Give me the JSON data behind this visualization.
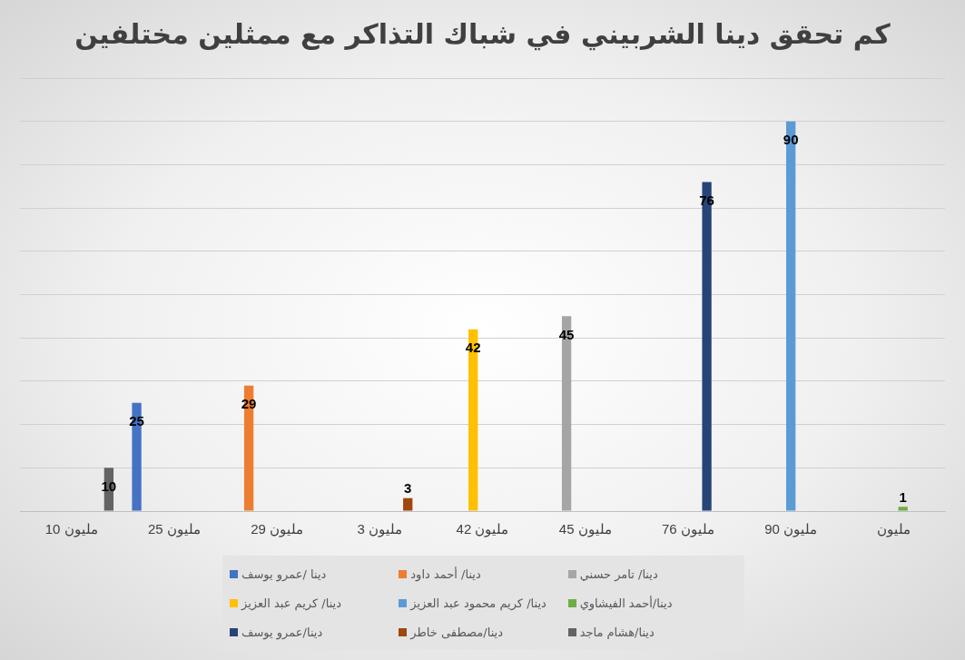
{
  "chart_data": {
    "type": "bar",
    "title": "كم تحقق دينا الشربيني في شباك التذاكر مع ممثلين مختلفين",
    "categories": [
      "10 مليون",
      "25 مليون",
      "29 مليون",
      "3 مليون",
      "42 مليون",
      "45 مليون",
      "76 مليون",
      "90 مليون",
      "مليون"
    ],
    "series": [
      {
        "name": "دينا /عمرو يوسف",
        "color": "#4472c4",
        "values": [
          null,
          25,
          null,
          null,
          null,
          null,
          null,
          null,
          null
        ]
      },
      {
        "name": "دينا/ أحمد داود",
        "color": "#ed7d31",
        "values": [
          null,
          null,
          29,
          null,
          null,
          null,
          null,
          null,
          null
        ]
      },
      {
        "name": "دينا/ تامر حسني",
        "color": "#a5a5a5",
        "values": [
          null,
          null,
          null,
          null,
          null,
          45,
          null,
          null,
          null
        ]
      },
      {
        "name": "دينا/ كريم عبد العزيز",
        "color": "#ffc000",
        "values": [
          null,
          null,
          null,
          null,
          42,
          null,
          null,
          null,
          null
        ]
      },
      {
        "name": "دينا/ كريم محمود عبد العزيز",
        "color": "#5b9bd5",
        "values": [
          null,
          null,
          null,
          null,
          null,
          null,
          null,
          90,
          null
        ]
      },
      {
        "name": "دينا/أحمد الفيشاوي",
        "color": "#70ad47",
        "values": [
          null,
          null,
          null,
          null,
          null,
          null,
          null,
          null,
          1
        ]
      },
      {
        "name": "دينا/عمرو يوسف",
        "color": "#264478",
        "values": [
          null,
          null,
          null,
          null,
          null,
          null,
          76,
          null,
          null
        ]
      },
      {
        "name": "دينا/مصطفى خاطر",
        "color": "#9e480e",
        "values": [
          null,
          null,
          null,
          3,
          null,
          null,
          null,
          null,
          null
        ]
      },
      {
        "name": "دينا/هشام ماجد",
        "color": "#636363",
        "values": [
          10,
          null,
          null,
          null,
          null,
          null,
          null,
          null,
          null
        ]
      }
    ],
    "ylim": [
      0,
      100
    ],
    "yticks": [
      {
        "value": 0,
        "label": null
      },
      {
        "value": 10,
        "label": null
      },
      {
        "value": 20,
        "label": null
      },
      {
        "value": 30,
        "label": null
      },
      {
        "value": 40,
        "label": null
      },
      {
        "value": 50,
        "label": null
      },
      {
        "value": 60,
        "label": null
      },
      {
        "value": 70,
        "label": null
      },
      {
        "value": 80,
        "label": null
      },
      {
        "value": 90,
        "label": null
      },
      {
        "value": 100,
        "label": null
      }
    ],
    "tick_labels": "x",
    "grid": "y",
    "legend": "bottom",
    "data_labels": true
  }
}
